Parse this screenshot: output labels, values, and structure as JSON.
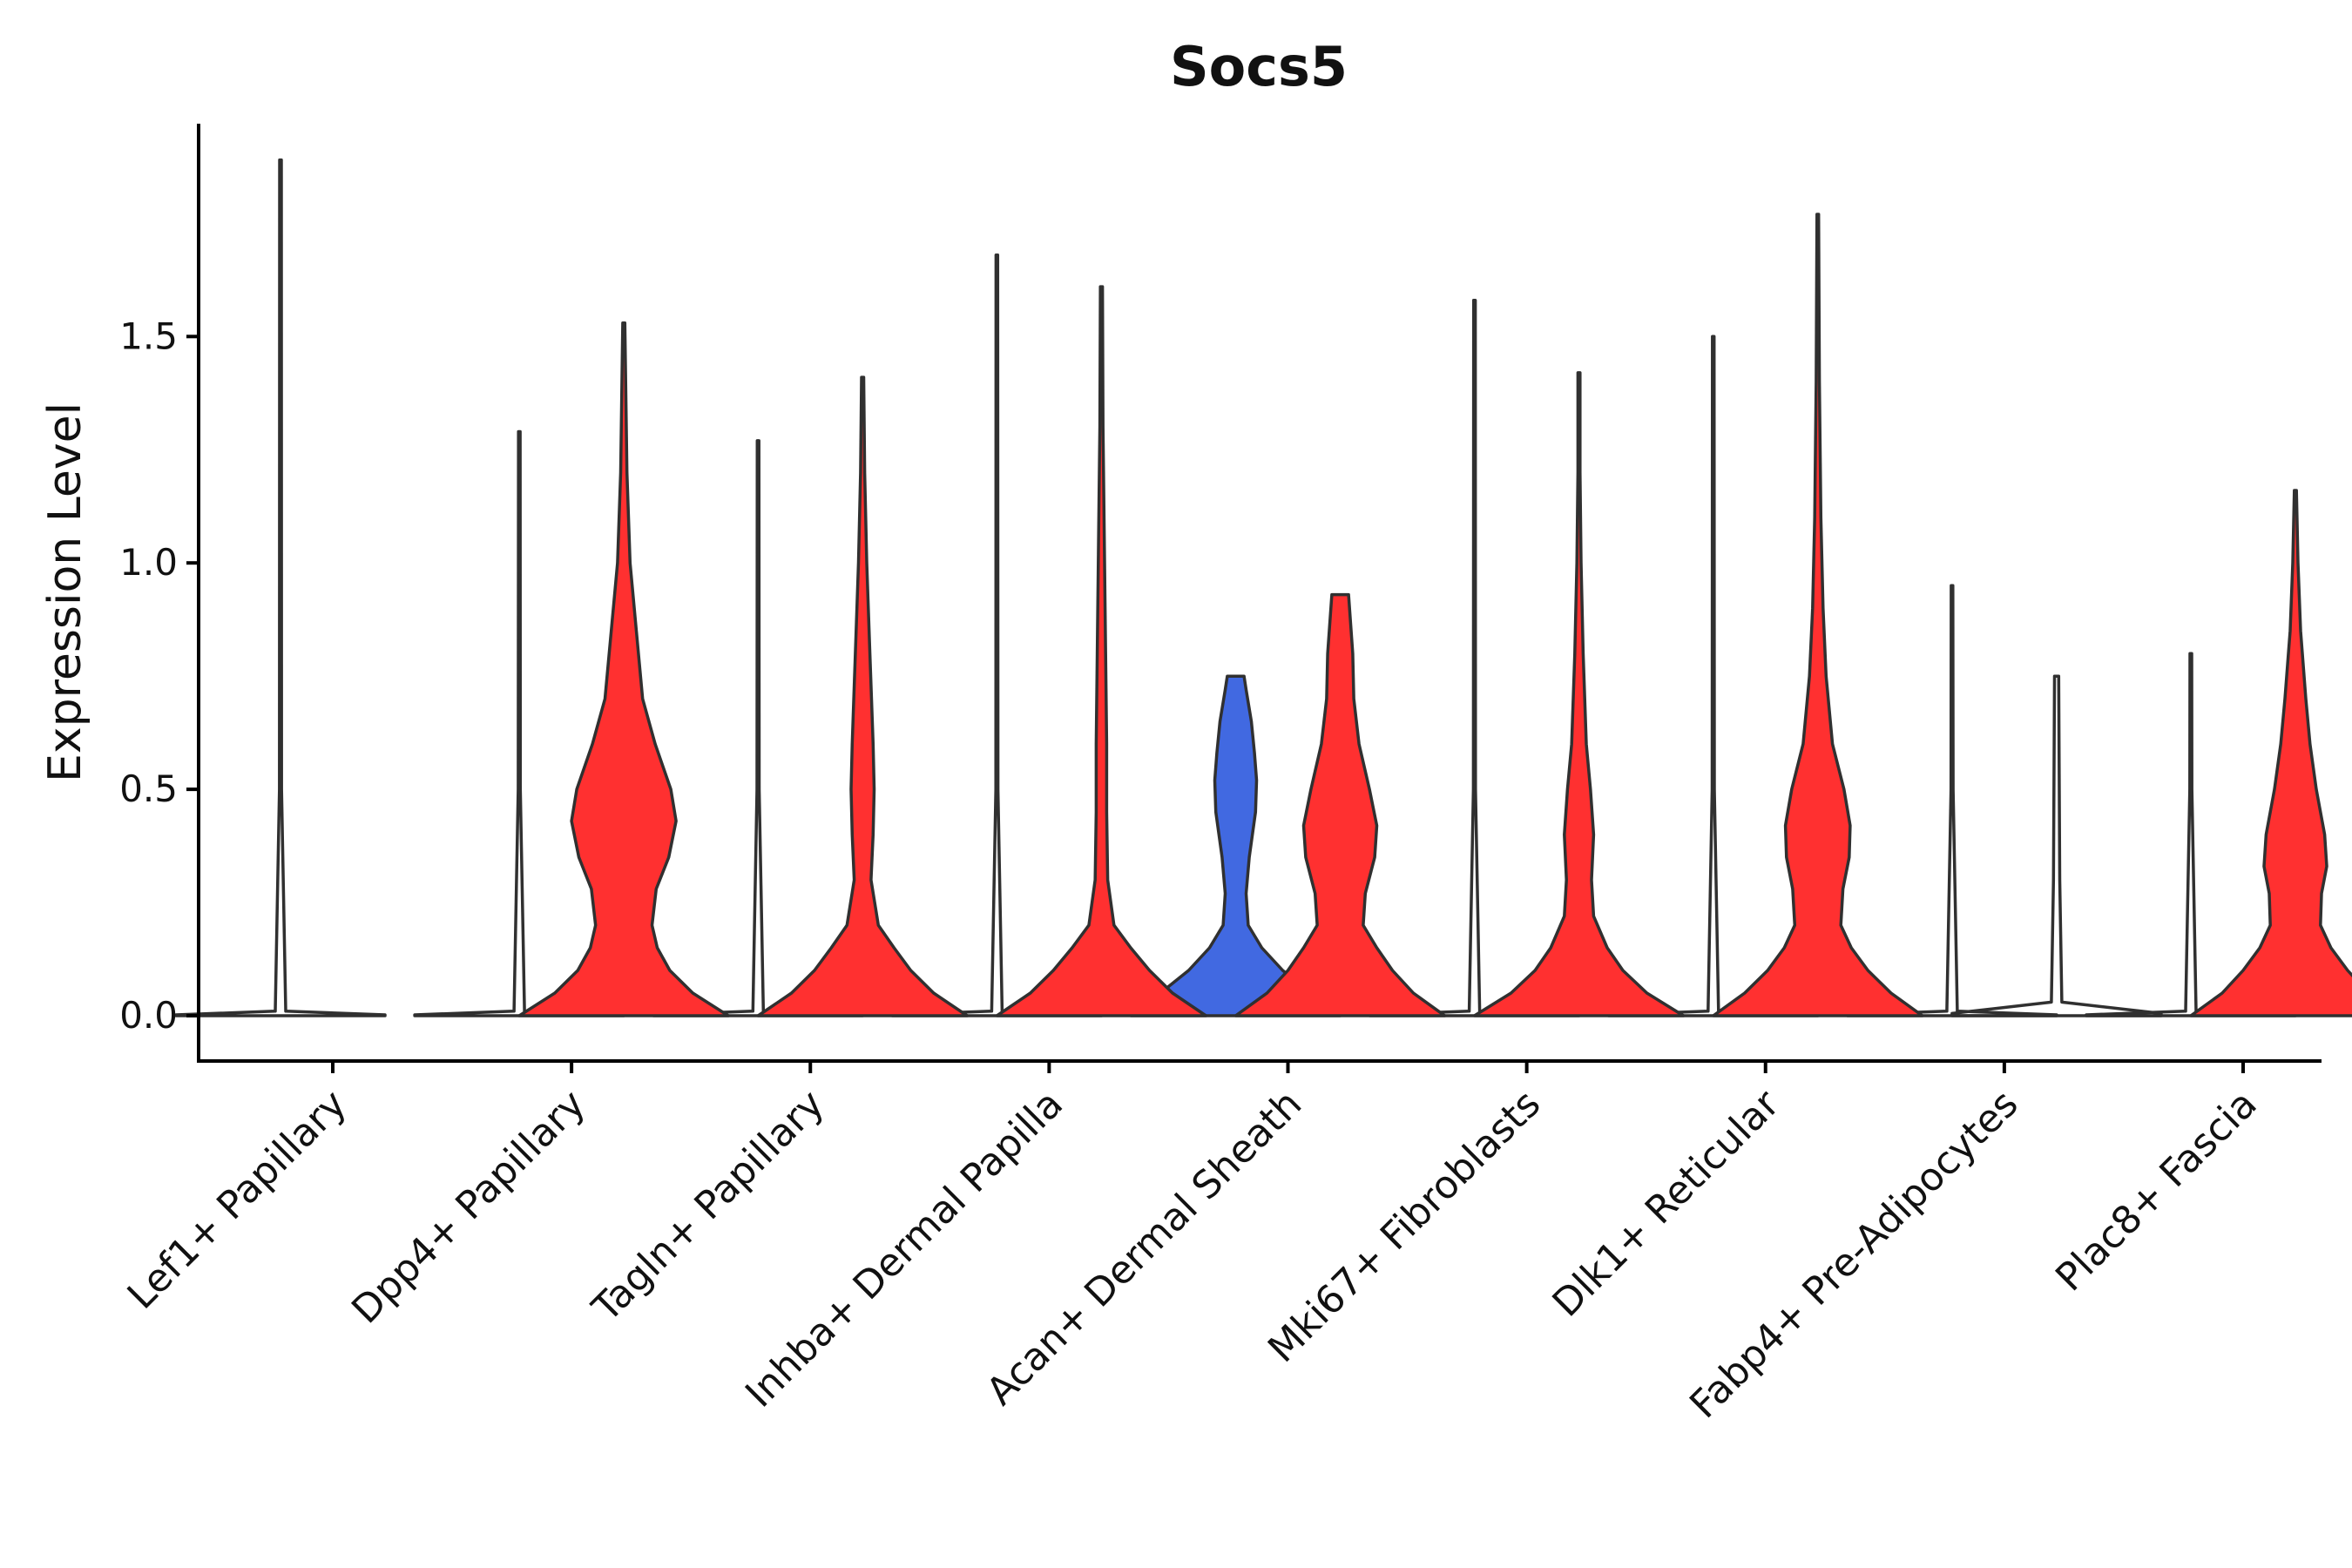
{
  "chart_data": {
    "type": "violin",
    "title": "Socs5",
    "xlabel": "",
    "ylabel": "Expression Level",
    "ylim": [
      -0.1,
      1.97
    ],
    "yticks": [
      "0.0",
      "0.5",
      "1.0",
      "1.5"
    ],
    "ytick_values": [
      0.0,
      0.5,
      1.0,
      1.5
    ],
    "grid": false,
    "legend": "none",
    "colors": {
      "group_a": "#4169E1",
      "group_b": "#FF3030",
      "outline": "#303030"
    },
    "categories": [
      "Lef1+ Papillary",
      "Dpp4+ Papillary",
      "Tagln+ Papillary",
      "Inhba+ Dermal Papilla",
      "Acan+ Dermal Sheath",
      "Mki67+ Fibroblasts",
      "Dlk1+ Reticular",
      "Fabp4+ Pre-Adipocytes",
      "Plac8+ Fascia"
    ],
    "series": [
      {
        "name": "group_a",
        "color": "#4169E1",
        "max": [
          1.89,
          1.29,
          1.27,
          1.68,
          0.75,
          1.58,
          1.5,
          0.95,
          0.8
        ],
        "density": [
          [
            [
              0,
              1
            ],
            [
              0.002,
              1
            ],
            [
              0.01,
              0.05
            ],
            [
              0.5,
              0.01
            ],
            [
              1.89,
              0.008
            ]
          ],
          [
            [
              0,
              1
            ],
            [
              0.002,
              1
            ],
            [
              0.01,
              0.05
            ],
            [
              0.5,
              0.01
            ],
            [
              1.29,
              0.008
            ]
          ],
          [
            [
              0,
              1
            ],
            [
              0.002,
              1
            ],
            [
              0.01,
              0.05
            ],
            [
              0.5,
              0.01
            ],
            [
              1.27,
              0.008
            ]
          ],
          [
            [
              0,
              1
            ],
            [
              0.002,
              1
            ],
            [
              0.01,
              0.05
            ],
            [
              0.5,
              0.01
            ],
            [
              1.68,
              0.008
            ]
          ],
          [
            [
              0,
              1
            ],
            [
              0.05,
              0.72
            ],
            [
              0.1,
              0.45
            ],
            [
              0.15,
              0.25
            ],
            [
              0.2,
              0.12
            ],
            [
              0.27,
              0.1
            ],
            [
              0.35,
              0.13
            ],
            [
              0.45,
              0.19
            ],
            [
              0.52,
              0.2
            ],
            [
              0.58,
              0.18
            ],
            [
              0.65,
              0.15
            ],
            [
              0.72,
              0.1
            ],
            [
              0.75,
              0.08
            ]
          ],
          [
            [
              0,
              1
            ],
            [
              0.002,
              1
            ],
            [
              0.01,
              0.05
            ],
            [
              0.5,
              0.01
            ],
            [
              1.58,
              0.008
            ]
          ],
          [
            [
              0,
              1
            ],
            [
              0.002,
              1
            ],
            [
              0.01,
              0.05
            ],
            [
              0.5,
              0.01
            ],
            [
              1.5,
              0.008
            ]
          ],
          [
            [
              0,
              1
            ],
            [
              0.002,
              1
            ],
            [
              0.01,
              0.05
            ],
            [
              0.5,
              0.01
            ],
            [
              0.95,
              0.008
            ]
          ],
          [
            [
              0,
              1
            ],
            [
              0.002,
              1
            ],
            [
              0.01,
              0.05
            ],
            [
              0.5,
              0.01
            ],
            [
              0.8,
              0.008
            ]
          ]
        ]
      },
      {
        "name": "group_b",
        "color": "#FF3030",
        "max": [
          null,
          1.53,
          1.41,
          1.61,
          0.93,
          1.42,
          1.77,
          0.75,
          1.16
        ],
        "density": [
          null,
          [
            [
              0,
              1
            ],
            [
              0.05,
              0.66
            ],
            [
              0.1,
              0.44
            ],
            [
              0.15,
              0.32
            ],
            [
              0.2,
              0.27
            ],
            [
              0.28,
              0.31
            ],
            [
              0.35,
              0.43
            ],
            [
              0.43,
              0.5
            ],
            [
              0.5,
              0.45
            ],
            [
              0.6,
              0.3
            ],
            [
              0.7,
              0.18
            ],
            [
              0.85,
              0.12
            ],
            [
              1.0,
              0.06
            ],
            [
              1.2,
              0.03
            ],
            [
              1.53,
              0.01
            ]
          ],
          [
            [
              0,
              1
            ],
            [
              0.05,
              0.68
            ],
            [
              0.1,
              0.46
            ],
            [
              0.15,
              0.3
            ],
            [
              0.2,
              0.15
            ],
            [
              0.3,
              0.08
            ],
            [
              0.4,
              0.1
            ],
            [
              0.5,
              0.11
            ],
            [
              0.6,
              0.1
            ],
            [
              0.8,
              0.07
            ],
            [
              1.0,
              0.04
            ],
            [
              1.2,
              0.02
            ],
            [
              1.41,
              0.01
            ]
          ],
          [
            [
              0,
              1
            ],
            [
              0.05,
              0.68
            ],
            [
              0.1,
              0.46
            ],
            [
              0.15,
              0.28
            ],
            [
              0.2,
              0.12
            ],
            [
              0.3,
              0.06
            ],
            [
              0.45,
              0.05
            ],
            [
              0.6,
              0.05
            ],
            [
              0.8,
              0.04
            ],
            [
              1.0,
              0.03
            ],
            [
              1.3,
              0.015
            ],
            [
              1.61,
              0.01
            ]
          ],
          [
            [
              0,
              1
            ],
            [
              0.05,
              0.7
            ],
            [
              0.1,
              0.5
            ],
            [
              0.15,
              0.35
            ],
            [
              0.2,
              0.22
            ],
            [
              0.27,
              0.24
            ],
            [
              0.35,
              0.33
            ],
            [
              0.42,
              0.35
            ],
            [
              0.5,
              0.28
            ],
            [
              0.6,
              0.18
            ],
            [
              0.7,
              0.13
            ],
            [
              0.8,
              0.12
            ],
            [
              0.93,
              0.08
            ]
          ],
          [
            [
              0,
              1
            ],
            [
              0.05,
              0.65
            ],
            [
              0.1,
              0.42
            ],
            [
              0.15,
              0.27
            ],
            [
              0.22,
              0.14
            ],
            [
              0.3,
              0.12
            ],
            [
              0.4,
              0.14
            ],
            [
              0.5,
              0.11
            ],
            [
              0.6,
              0.07
            ],
            [
              0.8,
              0.04
            ],
            [
              1.0,
              0.02
            ],
            [
              1.2,
              0.01
            ],
            [
              1.42,
              0.01
            ]
          ],
          [
            [
              0,
              1
            ],
            [
              0.05,
              0.7
            ],
            [
              0.1,
              0.48
            ],
            [
              0.15,
              0.32
            ],
            [
              0.2,
              0.22
            ],
            [
              0.28,
              0.24
            ],
            [
              0.35,
              0.3
            ],
            [
              0.42,
              0.31
            ],
            [
              0.5,
              0.25
            ],
            [
              0.6,
              0.14
            ],
            [
              0.75,
              0.08
            ],
            [
              0.9,
              0.05
            ],
            [
              1.1,
              0.03
            ],
            [
              1.4,
              0.015
            ],
            [
              1.77,
              0.008
            ]
          ],
          [
            [
              0,
              1
            ],
            [
              0.005,
              1
            ],
            [
              0.03,
              0.05
            ],
            [
              0.3,
              0.03
            ],
            [
              0.75,
              0.02
            ]
          ],
          [
            [
              0,
              1
            ],
            [
              0.05,
              0.7
            ],
            [
              0.1,
              0.5
            ],
            [
              0.15,
              0.34
            ],
            [
              0.2,
              0.24
            ],
            [
              0.27,
              0.25
            ],
            [
              0.33,
              0.3
            ],
            [
              0.4,
              0.28
            ],
            [
              0.5,
              0.2
            ],
            [
              0.6,
              0.14
            ],
            [
              0.7,
              0.1
            ],
            [
              0.85,
              0.05
            ],
            [
              1.0,
              0.025
            ],
            [
              1.16,
              0.01
            ]
          ]
        ]
      }
    ]
  }
}
